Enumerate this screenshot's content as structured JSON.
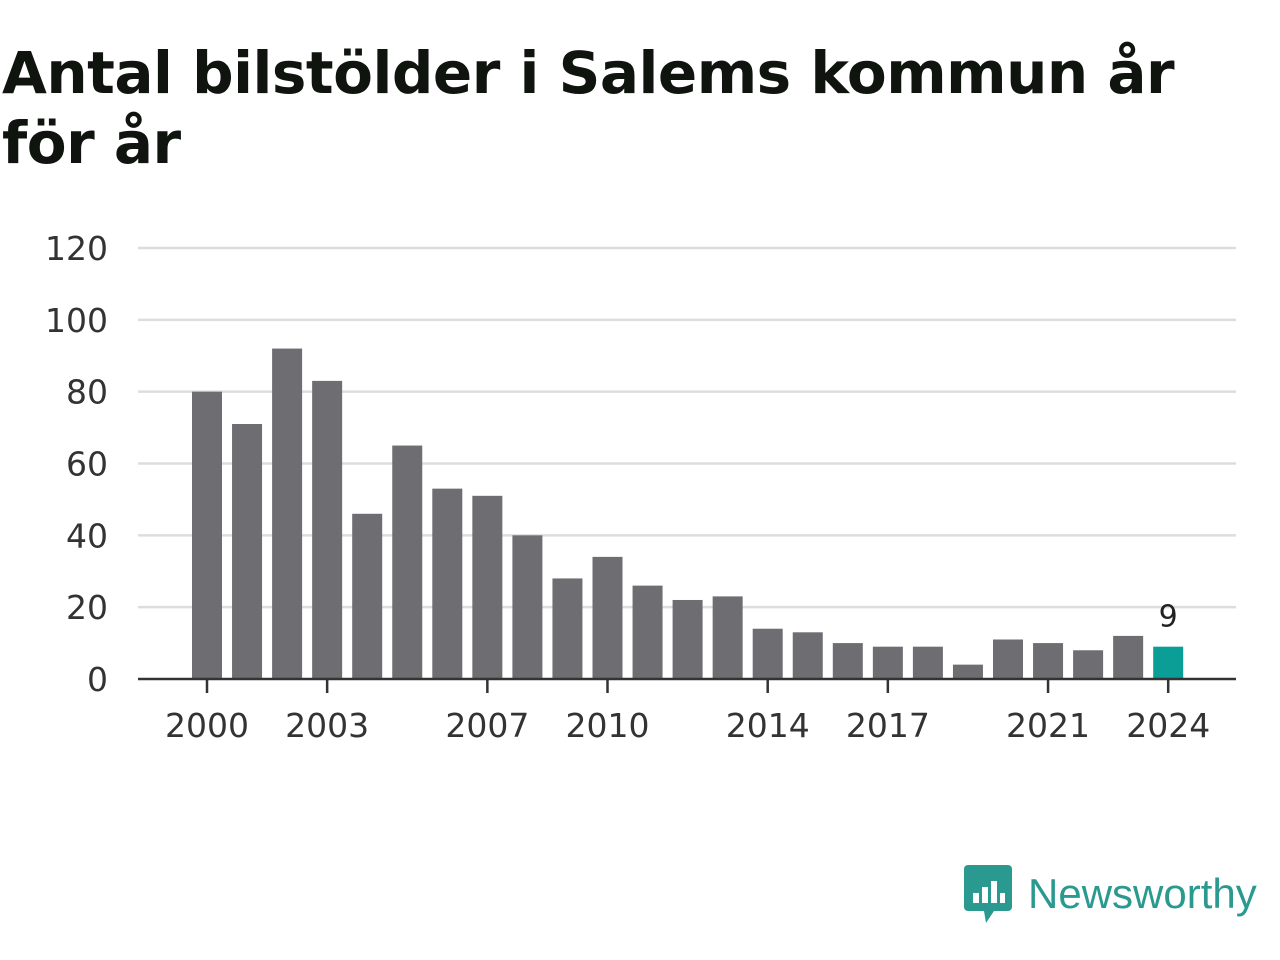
{
  "title": "Antal bilstölder i Salems kommun år för år",
  "brand": {
    "name": "Newsworthy",
    "icon": "newsworthy-logo-icon",
    "color": "#2a9a90"
  },
  "chart_data": {
    "type": "bar",
    "title": "Antal bilstölder i Salems kommun år för år",
    "xlabel": "",
    "ylabel": "",
    "categories": [
      "2000",
      "2001",
      "2002",
      "2003",
      "2004",
      "2005",
      "2006",
      "2007",
      "2008",
      "2009",
      "2010",
      "2011",
      "2012",
      "2013",
      "2014",
      "2015",
      "2016",
      "2017",
      "2018",
      "2019",
      "2020",
      "2021",
      "2022",
      "2023",
      "2024"
    ],
    "values": [
      80,
      71,
      92,
      83,
      46,
      65,
      53,
      51,
      40,
      28,
      34,
      26,
      22,
      23,
      14,
      13,
      10,
      9,
      9,
      4,
      11,
      10,
      8,
      12,
      9
    ],
    "x_tick_labels": [
      "2000",
      "2003",
      "2007",
      "2010",
      "2014",
      "2017",
      "2021",
      "2024"
    ],
    "y_ticks": [
      0,
      20,
      40,
      60,
      80,
      100,
      120
    ],
    "ylim": [
      0,
      120
    ],
    "grid": "horizontal",
    "bar_color": "#6e6d72",
    "highlight": {
      "category": "2024",
      "color": "#0a9e96",
      "label": "9"
    }
  }
}
